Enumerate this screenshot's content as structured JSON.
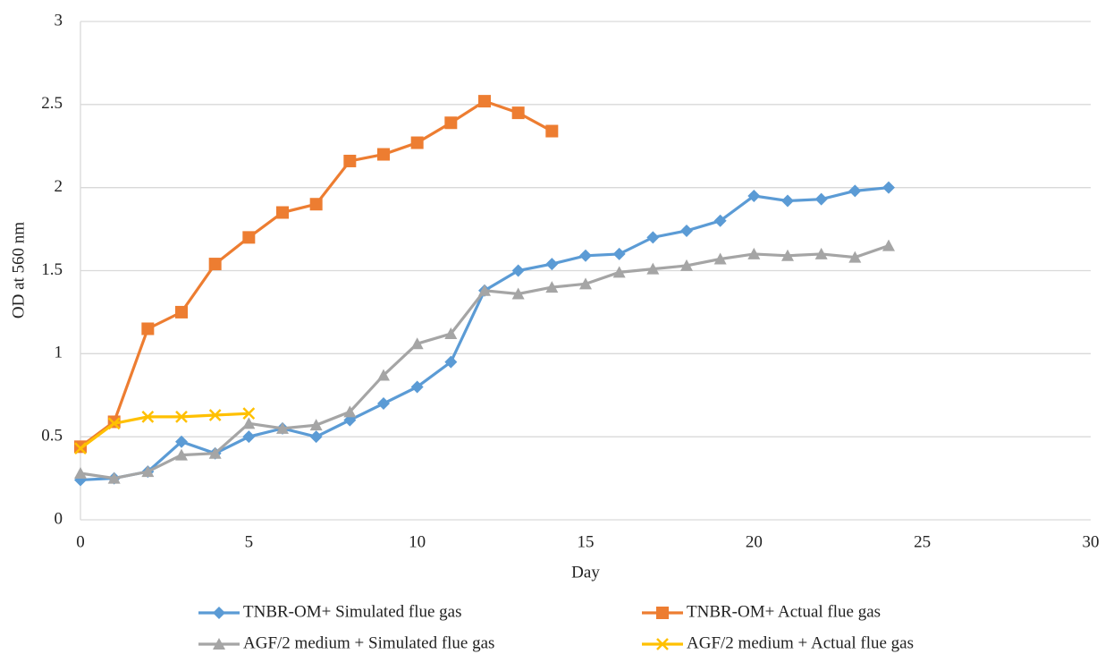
{
  "chart_data": {
    "type": "line",
    "x_label": "Day",
    "y_label": "OD at 560 nm",
    "x": [
      0,
      1,
      2,
      3,
      4,
      5,
      6,
      7,
      8,
      9,
      10,
      11,
      12,
      13,
      14,
      15,
      16,
      17,
      18,
      19,
      20,
      21,
      22,
      23,
      24
    ],
    "xlim": [
      0,
      30
    ],
    "xticks": [
      0,
      5,
      10,
      15,
      20,
      25,
      30
    ],
    "ylim": [
      0,
      3
    ],
    "yticks": [
      0,
      0.5,
      1,
      1.5,
      2,
      2.5,
      3
    ],
    "grid": true,
    "legend": "bottom",
    "series": [
      {
        "name": "TNBR-OM+ Simulated flue gas",
        "color": "#5b9bd5",
        "marker": "diamond",
        "values": [
          0.24,
          0.25,
          0.29,
          0.47,
          0.4,
          0.5,
          0.55,
          0.5,
          0.6,
          0.7,
          0.8,
          0.95,
          1.38,
          1.5,
          1.54,
          1.59,
          1.6,
          1.7,
          1.74,
          1.8,
          1.95,
          1.92,
          1.93,
          1.98,
          2.0
        ]
      },
      {
        "name": "TNBR-OM+ Actual flue gas",
        "color": "#ed7d31",
        "marker": "square",
        "values": [
          0.44,
          0.59,
          1.15,
          1.25,
          1.54,
          1.7,
          1.85,
          1.9,
          2.16,
          2.2,
          2.27,
          2.39,
          2.52,
          2.45,
          2.34,
          null,
          null,
          null,
          null,
          null,
          null,
          null,
          null,
          null,
          null
        ]
      },
      {
        "name": "AGF/2 medium + Simulated flue gas",
        "color": "#a5a5a5",
        "marker": "triangle",
        "values": [
          0.28,
          0.25,
          0.29,
          0.39,
          0.4,
          0.58,
          0.55,
          0.57,
          0.65,
          0.87,
          1.06,
          1.12,
          1.38,
          1.36,
          1.4,
          1.42,
          1.49,
          1.51,
          1.53,
          1.57,
          1.6,
          1.59,
          1.6,
          1.58,
          1.65
        ]
      },
      {
        "name": "AGF/2 medium + Actual flue gas",
        "color": "#ffc000",
        "marker": "x",
        "values": [
          0.43,
          0.58,
          0.62,
          0.62,
          0.63,
          0.64,
          null,
          null,
          null,
          null,
          null,
          null,
          null,
          null,
          null,
          null,
          null,
          null,
          null,
          null,
          null,
          null,
          null,
          null,
          null
        ]
      }
    ]
  }
}
